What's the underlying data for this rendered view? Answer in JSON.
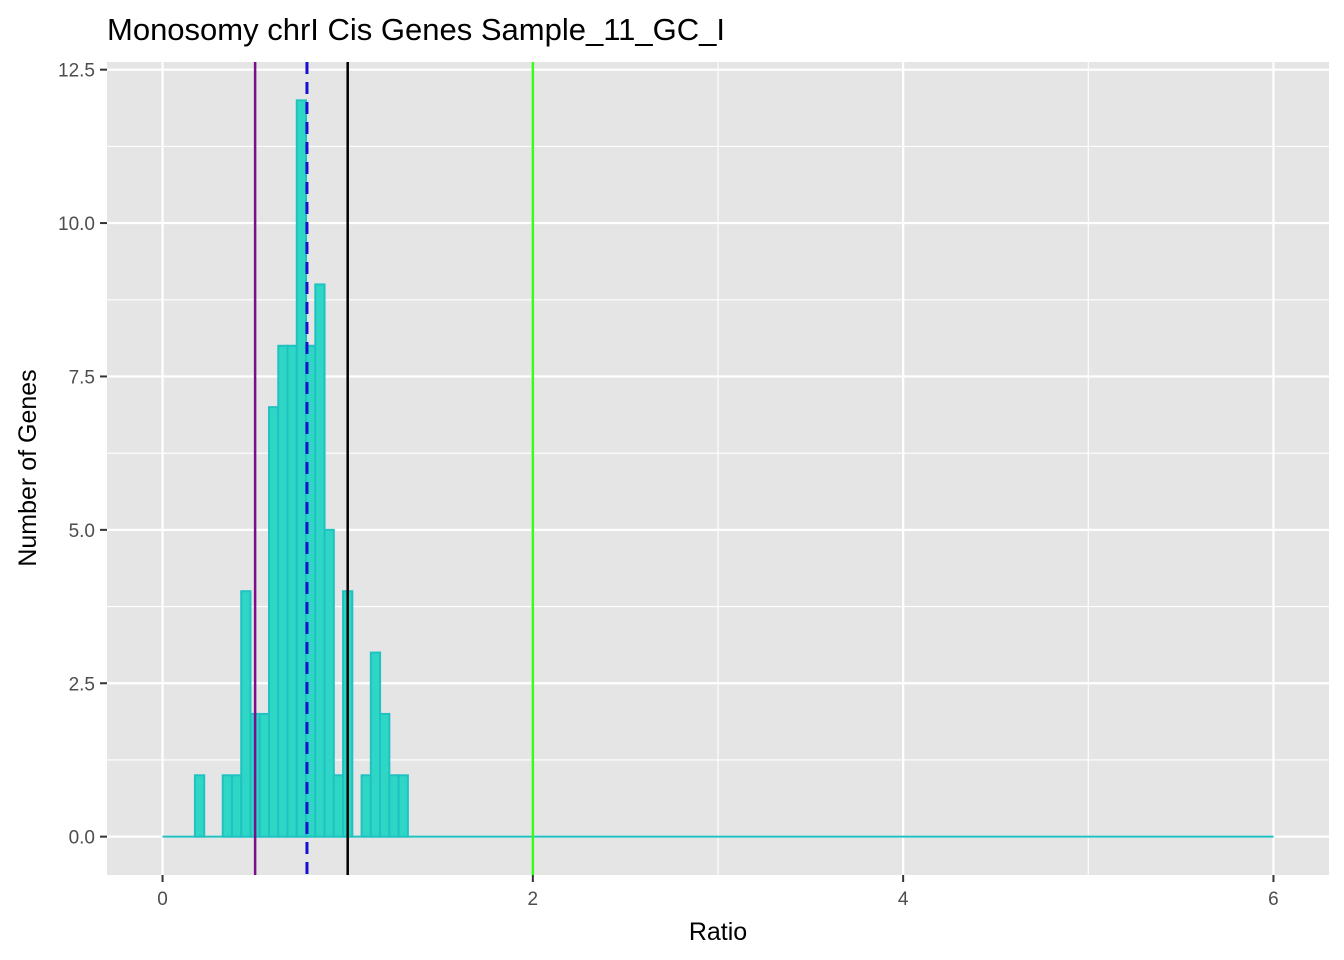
{
  "chart_data": {
    "type": "bar",
    "title": "Monosomy chrI Cis Genes Sample_11_GC_I",
    "xlabel": "Ratio",
    "ylabel": "Number of Genes",
    "xlim": [
      -0.3,
      6.3
    ],
    "ylim": [
      -0.625,
      12.625
    ],
    "x_ticks": [
      0,
      2,
      4,
      6
    ],
    "x_tick_labels": [
      "0",
      "2",
      "4",
      "6"
    ],
    "y_ticks": [
      0,
      2.5,
      5,
      7.5,
      10,
      12.5
    ],
    "y_tick_labels": [
      "0.0",
      "2.5",
      "5.0",
      "7.5",
      "10.0",
      "12.5"
    ],
    "grid": true,
    "bin_width": 0.05,
    "histogram_start": 0,
    "histogram_end": 6,
    "bins": [
      {
        "x": 0.2,
        "count": 1
      },
      {
        "x": 0.35,
        "count": 1
      },
      {
        "x": 0.4,
        "count": 1
      },
      {
        "x": 0.45,
        "count": 4
      },
      {
        "x": 0.5,
        "count": 2
      },
      {
        "x": 0.55,
        "count": 2
      },
      {
        "x": 0.6,
        "count": 7
      },
      {
        "x": 0.65,
        "count": 8
      },
      {
        "x": 0.7,
        "count": 8
      },
      {
        "x": 0.75,
        "count": 12
      },
      {
        "x": 0.8,
        "count": 8
      },
      {
        "x": 0.85,
        "count": 9
      },
      {
        "x": 0.9,
        "count": 5
      },
      {
        "x": 0.95,
        "count": 1
      },
      {
        "x": 1.0,
        "count": 4
      },
      {
        "x": 1.1,
        "count": 1
      },
      {
        "x": 1.15,
        "count": 3
      },
      {
        "x": 1.2,
        "count": 2
      },
      {
        "x": 1.25,
        "count": 1
      },
      {
        "x": 1.3,
        "count": 1
      }
    ],
    "vlines": [
      {
        "x": 0.5,
        "color": "#7B0D8A",
        "style": "solid"
      },
      {
        "x": 0.78,
        "color": "#1A0FD1",
        "style": "dashed"
      },
      {
        "x": 1.0,
        "color": "#000000",
        "style": "solid"
      },
      {
        "x": 2.0,
        "color": "#33FF1A",
        "style": "solid"
      }
    ],
    "colors": {
      "bar_fill": "#2ED6C6",
      "bar_outline": "#1FC2C0",
      "panel": "#E5E5E5",
      "grid": "#FFFFFF"
    }
  }
}
